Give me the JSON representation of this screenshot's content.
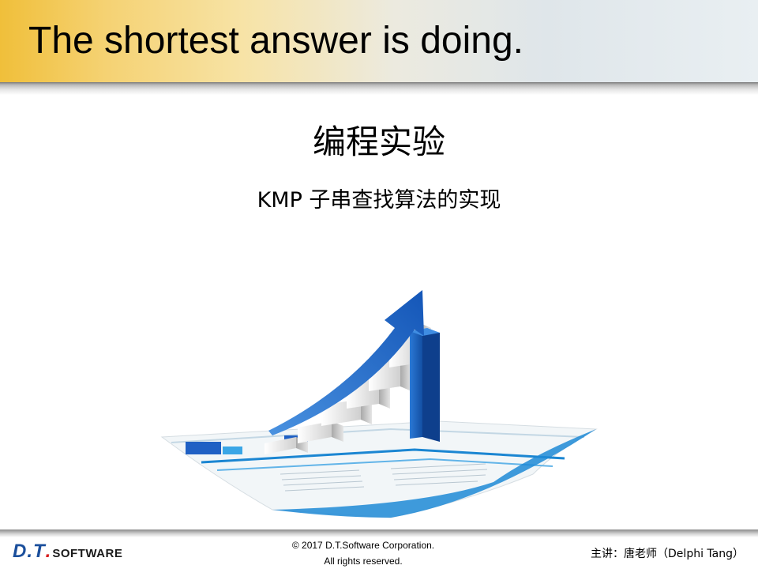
{
  "header": {
    "title": "The shortest answer is doing."
  },
  "slide": {
    "title": "编程实验",
    "subtitle": "KMP 子串查找算法的实现"
  },
  "footer": {
    "logo_main": "D.T",
    "logo_dot": ".",
    "logo_suffix": "SOFTWARE",
    "copyright_line1": "© 2017 D.T.Software Corporation.",
    "copyright_line2": "All rights reserved.",
    "presenter": "主讲：唐老师（Delphi Tang）"
  },
  "colors": {
    "accent_blue": "#1b63c6",
    "header_gold": "#f0bf3a",
    "logo_red": "#d81e1e"
  },
  "icons": {
    "illustration": "growth-bar-chart-icon"
  }
}
